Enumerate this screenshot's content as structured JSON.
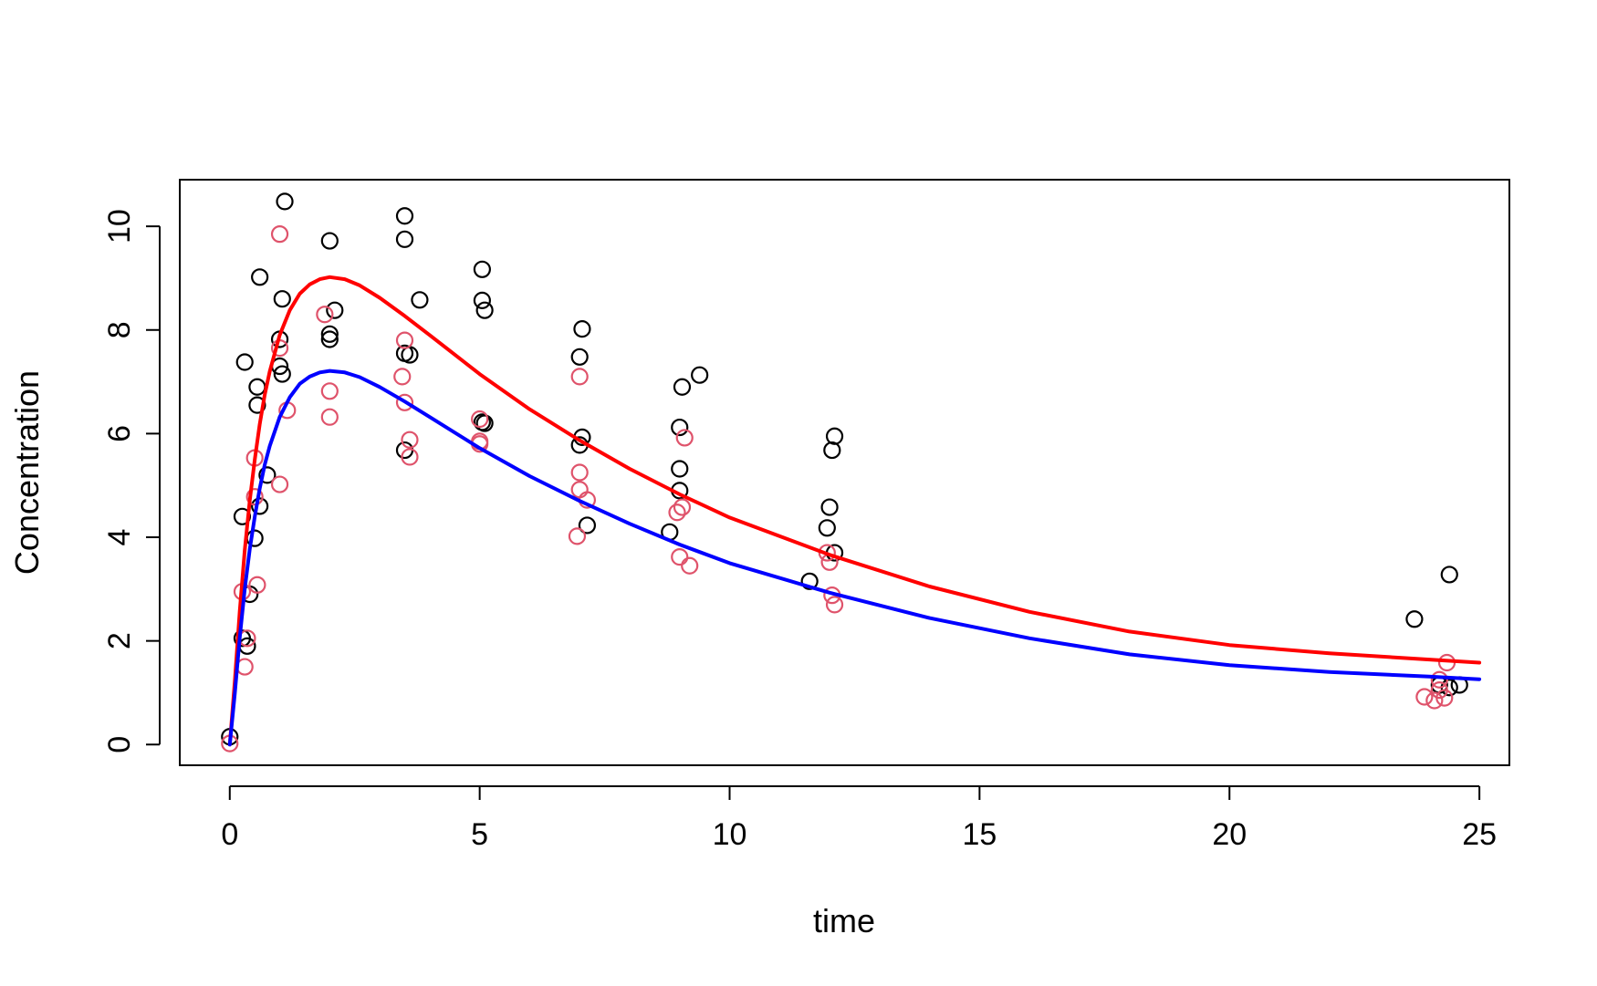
{
  "chart_data": {
    "type": "scatter",
    "title": "",
    "xlabel": "time",
    "ylabel": "Concentration",
    "xlim": [
      -1,
      25.6
    ],
    "ylim": [
      -0.4,
      10.9
    ],
    "xticks": [
      0,
      5,
      10,
      15,
      20,
      25
    ],
    "yticks": [
      0,
      2,
      4,
      6,
      8,
      10
    ],
    "grid": false,
    "legend": "none",
    "series": [
      {
        "kind": "points",
        "color": "#000000",
        "points": [
          [
            0.0,
            0.15
          ],
          [
            0.25,
            2.05
          ],
          [
            0.35,
            1.9
          ],
          [
            0.4,
            2.9
          ],
          [
            0.25,
            4.4
          ],
          [
            0.5,
            3.98
          ],
          [
            0.6,
            4.6
          ],
          [
            0.75,
            5.2
          ],
          [
            0.55,
            6.55
          ],
          [
            0.55,
            6.9
          ],
          [
            0.3,
            7.38
          ],
          [
            0.6,
            9.02
          ],
          [
            1.0,
            7.3
          ],
          [
            1.05,
            7.15
          ],
          [
            1.0,
            7.82
          ],
          [
            1.05,
            8.6
          ],
          [
            1.1,
            10.48
          ],
          [
            2.0,
            9.72
          ],
          [
            2.0,
            7.92
          ],
          [
            2.0,
            7.82
          ],
          [
            2.1,
            8.38
          ],
          [
            3.5,
            10.2
          ],
          [
            3.5,
            9.75
          ],
          [
            3.5,
            7.55
          ],
          [
            3.6,
            7.52
          ],
          [
            3.8,
            8.58
          ],
          [
            3.5,
            5.68
          ],
          [
            5.05,
            9.17
          ],
          [
            5.05,
            8.57
          ],
          [
            5.1,
            8.38
          ],
          [
            5.05,
            6.22
          ],
          [
            5.1,
            6.2
          ],
          [
            7.05,
            8.02
          ],
          [
            7.0,
            7.48
          ],
          [
            7.05,
            5.93
          ],
          [
            7.0,
            5.78
          ],
          [
            7.15,
            4.23
          ],
          [
            9.05,
            6.9
          ],
          [
            9.4,
            7.13
          ],
          [
            9.0,
            6.12
          ],
          [
            9.0,
            5.32
          ],
          [
            9.0,
            4.9
          ],
          [
            8.8,
            4.1
          ],
          [
            12.1,
            5.95
          ],
          [
            12.05,
            5.68
          ],
          [
            12.0,
            4.58
          ],
          [
            11.95,
            4.18
          ],
          [
            12.1,
            3.7
          ],
          [
            11.6,
            3.15
          ],
          [
            23.7,
            2.42
          ],
          [
            24.4,
            3.28
          ],
          [
            24.2,
            1.15
          ],
          [
            24.6,
            1.15
          ],
          [
            24.4,
            1.1
          ]
        ]
      },
      {
        "kind": "points",
        "color": "#DF536B",
        "points": [
          [
            0.0,
            0.02
          ],
          [
            0.25,
            2.95
          ],
          [
            0.35,
            2.05
          ],
          [
            0.3,
            1.5
          ],
          [
            0.5,
            4.78
          ],
          [
            0.5,
            5.53
          ],
          [
            0.55,
            3.08
          ],
          [
            1.0,
            9.85
          ],
          [
            1.0,
            7.65
          ],
          [
            1.15,
            6.45
          ],
          [
            1.0,
            5.02
          ],
          [
            1.9,
            8.3
          ],
          [
            2.0,
            6.82
          ],
          [
            2.0,
            6.32
          ],
          [
            3.5,
            7.8
          ],
          [
            3.45,
            7.1
          ],
          [
            3.5,
            6.6
          ],
          [
            3.6,
            5.88
          ],
          [
            3.6,
            5.55
          ],
          [
            5.0,
            6.28
          ],
          [
            5.0,
            5.8
          ],
          [
            5.0,
            5.85
          ],
          [
            7.0,
            7.1
          ],
          [
            7.0,
            5.25
          ],
          [
            7.0,
            4.92
          ],
          [
            7.15,
            4.72
          ],
          [
            6.95,
            4.02
          ],
          [
            9.1,
            5.92
          ],
          [
            9.05,
            4.58
          ],
          [
            8.95,
            4.48
          ],
          [
            9.0,
            3.62
          ],
          [
            9.2,
            3.45
          ],
          [
            11.95,
            3.7
          ],
          [
            12.0,
            3.52
          ],
          [
            12.05,
            2.88
          ],
          [
            12.1,
            2.7
          ],
          [
            24.35,
            1.58
          ],
          [
            24.2,
            1.25
          ],
          [
            24.2,
            1.05
          ],
          [
            23.9,
            0.92
          ],
          [
            24.1,
            0.85
          ],
          [
            24.3,
            0.9
          ]
        ]
      },
      {
        "kind": "line",
        "color": "#FF0000",
        "points": [
          [
            0,
            0.0
          ],
          [
            0.1,
            1.22
          ],
          [
            0.2,
            2.57
          ],
          [
            0.3,
            3.75
          ],
          [
            0.4,
            4.71
          ],
          [
            0.5,
            5.5
          ],
          [
            0.6,
            6.18
          ],
          [
            0.7,
            6.75
          ],
          [
            0.8,
            7.2
          ],
          [
            1.0,
            7.9
          ],
          [
            1.2,
            8.38
          ],
          [
            1.4,
            8.7
          ],
          [
            1.6,
            8.88
          ],
          [
            1.8,
            8.98
          ],
          [
            2.0,
            9.02
          ],
          [
            2.3,
            8.98
          ],
          [
            2.6,
            8.86
          ],
          [
            3.0,
            8.62
          ],
          [
            3.5,
            8.27
          ],
          [
            4.0,
            7.9
          ],
          [
            5.0,
            7.15
          ],
          [
            6.0,
            6.47
          ],
          [
            7.0,
            5.87
          ],
          [
            8.0,
            5.32
          ],
          [
            9.0,
            4.83
          ],
          [
            10.0,
            4.38
          ],
          [
            12.0,
            3.66
          ],
          [
            14.0,
            3.05
          ],
          [
            16.0,
            2.56
          ],
          [
            18.0,
            2.18
          ],
          [
            20.0,
            1.92
          ],
          [
            22.0,
            1.76
          ],
          [
            24.0,
            1.64
          ],
          [
            25.0,
            1.58
          ]
        ]
      },
      {
        "kind": "line",
        "color": "#0000FF",
        "points": [
          [
            0,
            0.0
          ],
          [
            0.1,
            0.98
          ],
          [
            0.2,
            2.06
          ],
          [
            0.3,
            3.0
          ],
          [
            0.4,
            3.77
          ],
          [
            0.5,
            4.4
          ],
          [
            0.6,
            4.94
          ],
          [
            0.7,
            5.4
          ],
          [
            0.8,
            5.76
          ],
          [
            1.0,
            6.32
          ],
          [
            1.2,
            6.7
          ],
          [
            1.4,
            6.96
          ],
          [
            1.6,
            7.1
          ],
          [
            1.8,
            7.18
          ],
          [
            2.0,
            7.21
          ],
          [
            2.3,
            7.18
          ],
          [
            2.6,
            7.09
          ],
          [
            3.0,
            6.9
          ],
          [
            3.5,
            6.62
          ],
          [
            4.0,
            6.32
          ],
          [
            5.0,
            5.72
          ],
          [
            6.0,
            5.18
          ],
          [
            7.0,
            4.7
          ],
          [
            8.0,
            4.26
          ],
          [
            9.0,
            3.86
          ],
          [
            10.0,
            3.5
          ],
          [
            12.0,
            2.93
          ],
          [
            14.0,
            2.44
          ],
          [
            16.0,
            2.05
          ],
          [
            18.0,
            1.74
          ],
          [
            20.0,
            1.53
          ],
          [
            22.0,
            1.4
          ],
          [
            24.0,
            1.31
          ],
          [
            25.0,
            1.26
          ]
        ]
      }
    ]
  }
}
